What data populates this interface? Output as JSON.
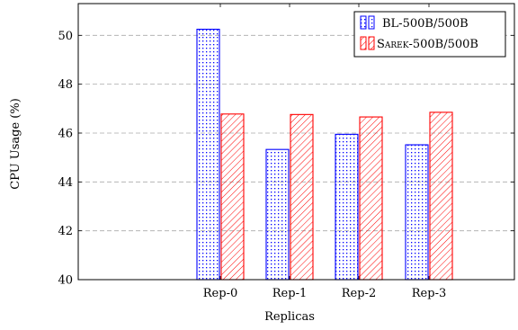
{
  "chart_data": {
    "type": "bar",
    "xlabel": "Replicas",
    "ylabel": "CPU Usage (%)",
    "categories": [
      "Rep-0",
      "Rep-1",
      "Rep-2",
      "Rep-3"
    ],
    "ylim": [
      40,
      51.3
    ],
    "yticks": [
      40,
      42,
      44,
      46,
      48,
      50
    ],
    "grid": "horizontal dashed",
    "legend_position": "top-right",
    "series": [
      {
        "name": "BL-500B/500B",
        "values": [
          50.25,
          45.33,
          45.95,
          45.52
        ],
        "color": "#0000ff",
        "pattern": "dots"
      },
      {
        "name": "Sarek-500B/500B",
        "values": [
          46.78,
          46.76,
          46.66,
          46.85
        ],
        "color": "#ff0000",
        "pattern": "diagonal lines"
      }
    ]
  }
}
